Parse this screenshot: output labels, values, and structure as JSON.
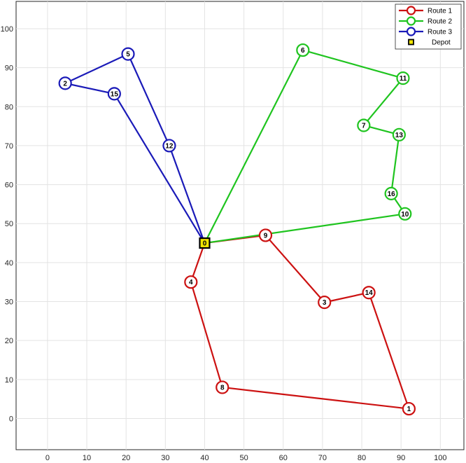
{
  "chart_data": {
    "type": "line",
    "title": "",
    "xlabel": "",
    "ylabel": "",
    "xlim": [
      -8,
      106
    ],
    "ylim": [
      -8,
      107
    ],
    "xticks": [
      0,
      10,
      20,
      30,
      40,
      50,
      60,
      70,
      80,
      90,
      100
    ],
    "yticks": [
      0,
      10,
      20,
      30,
      40,
      50,
      60,
      70,
      80,
      90,
      100
    ],
    "grid": true,
    "legend_position": "top-right",
    "depot": {
      "label": "0",
      "x": 40,
      "y": 45
    },
    "nodes": [
      {
        "label": "1",
        "x": 92,
        "y": 2.5
      },
      {
        "label": "2",
        "x": 4.5,
        "y": 86
      },
      {
        "label": "3",
        "x": 70.5,
        "y": 29.8
      },
      {
        "label": "4",
        "x": 36.5,
        "y": 35
      },
      {
        "label": "5",
        "x": 20.5,
        "y": 93.5
      },
      {
        "label": "6",
        "x": 65,
        "y": 94.5
      },
      {
        "label": "7",
        "x": 80.5,
        "y": 75.2
      },
      {
        "label": "8",
        "x": 44.5,
        "y": 8
      },
      {
        "label": "9",
        "x": 55.5,
        "y": 47
      },
      {
        "label": "10",
        "x": 91,
        "y": 52.5
      },
      {
        "label": "11",
        "x": 90.5,
        "y": 87.3
      },
      {
        "label": "12",
        "x": 31,
        "y": 70
      },
      {
        "label": "13",
        "x": 89.5,
        "y": 72.8
      },
      {
        "label": "14",
        "x": 81.8,
        "y": 32.3
      },
      {
        "label": "15",
        "x": 17,
        "y": 83.3
      },
      {
        "label": "16",
        "x": 87.5,
        "y": 57.7
      }
    ],
    "series": [
      {
        "name": "Route 1",
        "color": "#cc1111",
        "path": [
          "0",
          "9",
          "3",
          "14",
          "1",
          "8",
          "4",
          "0"
        ]
      },
      {
        "name": "Route 2",
        "color": "#1fc41f",
        "path": [
          "0",
          "10",
          "16",
          "13",
          "7",
          "11",
          "6",
          "0"
        ]
      },
      {
        "name": "Route 3",
        "color": "#1a1ab8",
        "path": [
          "0",
          "12",
          "5",
          "2",
          "15",
          "0"
        ]
      }
    ],
    "depot_legend": {
      "name": "Depot",
      "color": "#f2e600"
    }
  }
}
